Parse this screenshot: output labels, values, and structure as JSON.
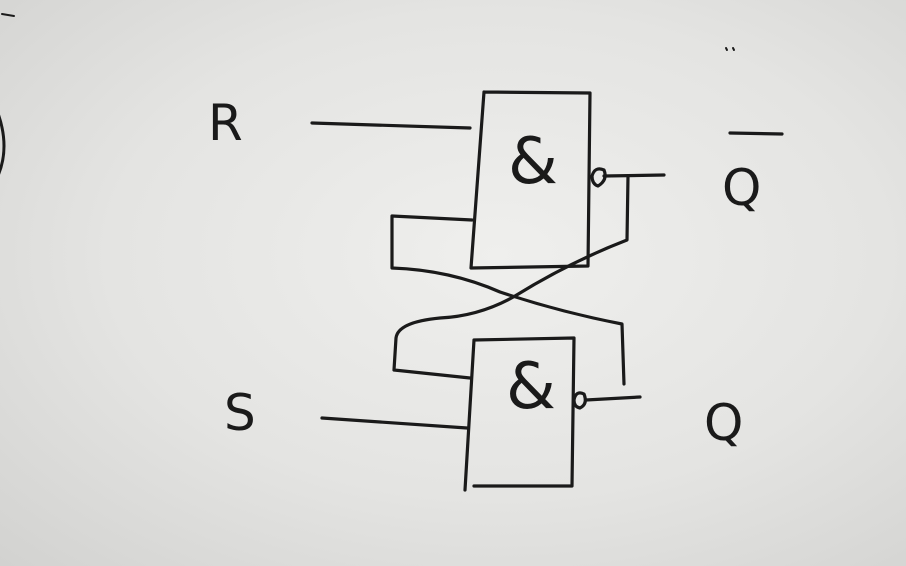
{
  "diagram": {
    "inputs": {
      "r_label": "R",
      "s_label": "S"
    },
    "outputs": {
      "q_bar_label": "Q",
      "q_label": "Q"
    },
    "gates": {
      "top_symbol": "&",
      "bottom_symbol": "&"
    }
  }
}
